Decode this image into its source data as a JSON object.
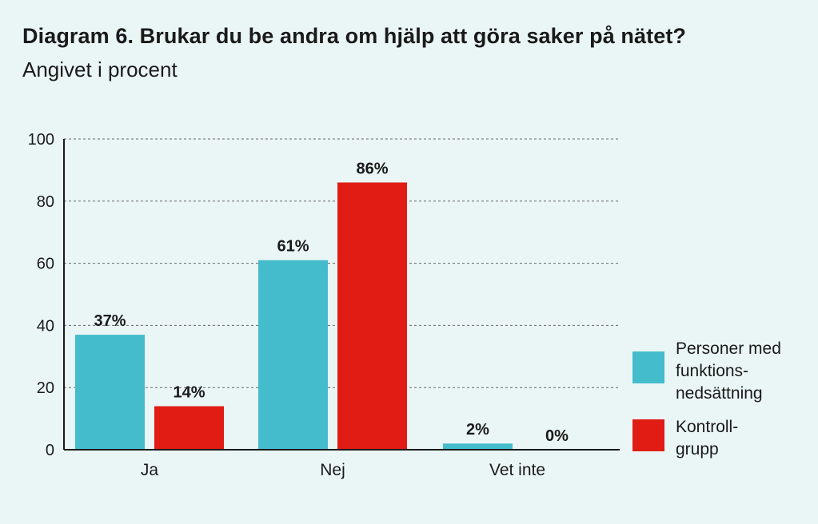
{
  "chart_data": {
    "type": "bar",
    "title": "Diagram 6. Brukar du be andra om hjälp att göra saker på nätet?",
    "subtitle": "Angivet i procent",
    "categories": [
      "Ja",
      "Nej",
      "Vet inte"
    ],
    "series": [
      {
        "name": "Personer med funktions- nedsättning",
        "name_lines": [
          "Personer med",
          "funktions-",
          "nedsättning"
        ],
        "color": "#45bccc",
        "values": [
          37,
          61,
          2
        ],
        "labels": [
          "37%",
          "61%",
          "2%"
        ]
      },
      {
        "name": "Kontroll- grupp",
        "name_lines": [
          "Kontroll-",
          "grupp"
        ],
        "color": "#e01c14",
        "values": [
          14,
          86,
          0
        ],
        "labels": [
          "14%",
          "86%",
          "0%"
        ]
      }
    ],
    "ylim": [
      0,
      100
    ],
    "yticks": [
      0,
      20,
      40,
      60,
      80,
      100
    ],
    "grid": true,
    "legend": "right"
  }
}
